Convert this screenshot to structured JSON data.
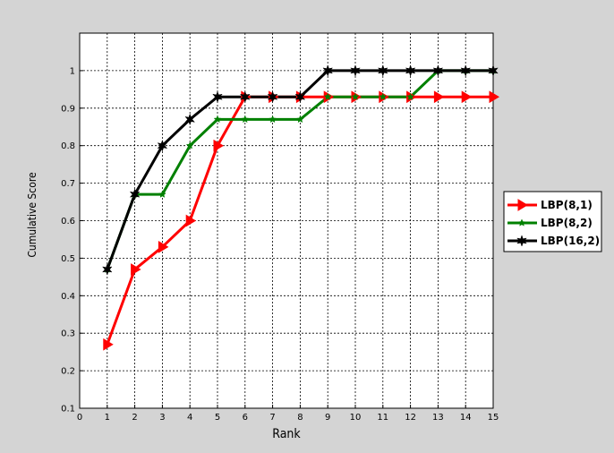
{
  "chart_data": {
    "type": "line",
    "title": "",
    "xlabel": "Rank",
    "ylabel": "Cumulative Score",
    "xlim": [
      0,
      15
    ],
    "ylim": [
      0.1,
      1.1
    ],
    "xticks": [
      "0",
      "1",
      "2",
      "3",
      "4",
      "5",
      "6",
      "7",
      "8",
      "9",
      "10",
      "11",
      "12",
      "13",
      "14",
      "15"
    ],
    "yticks": [
      "0.1",
      "0.2",
      "0.3",
      "0.4",
      "0.5",
      "0.6",
      "0.7",
      "0.8",
      "0.9",
      "1"
    ],
    "grid": true,
    "legend_position": "outside-right",
    "x": [
      1,
      2,
      3,
      4,
      5,
      6,
      7,
      8,
      9,
      10,
      11,
      12,
      13,
      14,
      15
    ],
    "series": [
      {
        "name": "LBP(8,1)",
        "color": "#ff0000",
        "marker": "triangle-right",
        "values": [
          0.27,
          0.47,
          0.53,
          0.6,
          0.8,
          0.93,
          0.93,
          0.93,
          0.93,
          0.93,
          0.93,
          0.93,
          0.93,
          0.93,
          0.93
        ]
      },
      {
        "name": "LBP(8,2)",
        "color": "#008000",
        "marker": "star",
        "values": [
          0.47,
          0.67,
          0.67,
          0.8,
          0.87,
          0.87,
          0.87,
          0.87,
          0.93,
          0.93,
          0.93,
          0.93,
          1.0,
          1.0,
          1.0
        ]
      },
      {
        "name": "LBP(16,2)",
        "color": "#000000",
        "marker": "hexagram",
        "values": [
          0.47,
          0.67,
          0.8,
          0.87,
          0.93,
          0.93,
          0.93,
          0.93,
          1.0,
          1.0,
          1.0,
          1.0,
          1.0,
          1.0,
          1.0
        ]
      }
    ]
  }
}
